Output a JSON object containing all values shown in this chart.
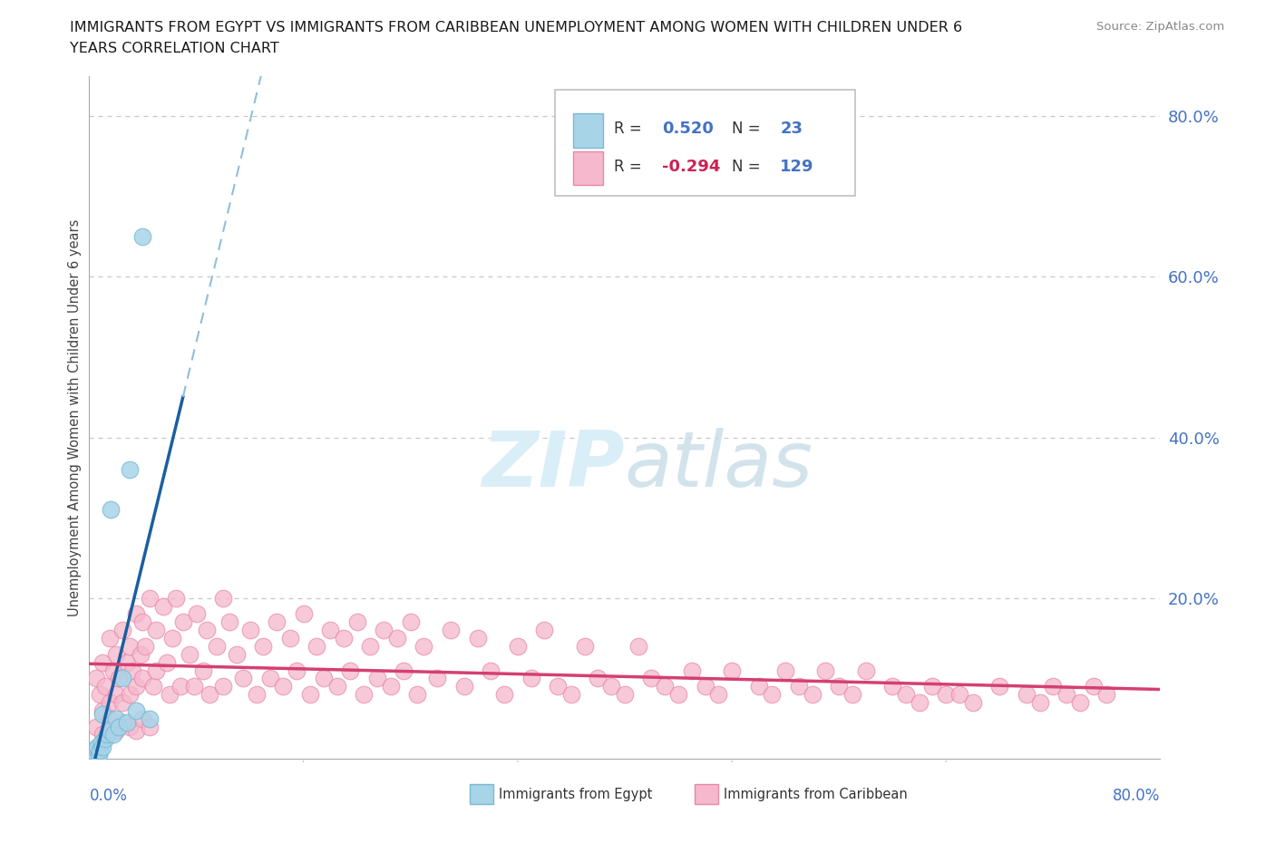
{
  "title_line1": "IMMIGRANTS FROM EGYPT VS IMMIGRANTS FROM CARIBBEAN UNEMPLOYMENT AMONG WOMEN WITH CHILDREN UNDER 6",
  "title_line2": "YEARS CORRELATION CHART",
  "source": "Source: ZipAtlas.com",
  "ylabel": "Unemployment Among Women with Children Under 6 years",
  "y_tick_values": [
    0.2,
    0.4,
    0.6,
    0.8
  ],
  "xmin": 0.0,
  "xmax": 0.8,
  "ymin": 0.0,
  "ymax": 0.85,
  "egypt_R": 0.52,
  "egypt_N": 23,
  "caribbean_R": -0.294,
  "caribbean_N": 129,
  "egypt_scatter_color": "#a8d4e8",
  "egypt_edge_color": "#7ab8d4",
  "caribbean_scatter_color": "#f5b8cc",
  "caribbean_edge_color": "#e888a8",
  "egypt_line_color": "#1a5fa0",
  "egypt_dash_color": "#90bedd",
  "caribbean_line_color": "#d44070",
  "watermark_color": "#daeef8",
  "grid_color": "#c8c8c8",
  "background_color": "#ffffff",
  "tick_color": "#4472c4",
  "label_color": "#444444",
  "egypt_x": [
    0.002,
    0.003,
    0.004,
    0.005,
    0.006,
    0.007,
    0.008,
    0.009,
    0.01,
    0.01,
    0.012,
    0.013,
    0.015,
    0.016,
    0.018,
    0.02,
    0.022,
    0.025,
    0.028,
    0.03,
    0.035,
    0.04,
    0.045
  ],
  "egypt_y": [
    0.01,
    0.005,
    0.008,
    0.012,
    0.015,
    0.005,
    0.01,
    0.02,
    0.015,
    0.055,
    0.025,
    0.03,
    0.035,
    0.31,
    0.03,
    0.05,
    0.04,
    0.1,
    0.045,
    0.36,
    0.06,
    0.65,
    0.05
  ],
  "caribbean_x": [
    0.005,
    0.008,
    0.01,
    0.01,
    0.012,
    0.015,
    0.015,
    0.018,
    0.02,
    0.02,
    0.022,
    0.025,
    0.025,
    0.028,
    0.03,
    0.03,
    0.032,
    0.035,
    0.035,
    0.038,
    0.04,
    0.04,
    0.042,
    0.045,
    0.048,
    0.05,
    0.05,
    0.055,
    0.058,
    0.06,
    0.062,
    0.065,
    0.068,
    0.07,
    0.075,
    0.078,
    0.08,
    0.085,
    0.088,
    0.09,
    0.095,
    0.1,
    0.1,
    0.105,
    0.11,
    0.115,
    0.12,
    0.125,
    0.13,
    0.135,
    0.14,
    0.145,
    0.15,
    0.155,
    0.16,
    0.165,
    0.17,
    0.175,
    0.18,
    0.185,
    0.19,
    0.195,
    0.2,
    0.205,
    0.21,
    0.215,
    0.22,
    0.225,
    0.23,
    0.235,
    0.24,
    0.245,
    0.25,
    0.26,
    0.27,
    0.28,
    0.29,
    0.3,
    0.31,
    0.32,
    0.33,
    0.34,
    0.35,
    0.36,
    0.37,
    0.38,
    0.39,
    0.4,
    0.41,
    0.42,
    0.43,
    0.44,
    0.45,
    0.46,
    0.47,
    0.48,
    0.5,
    0.51,
    0.52,
    0.53,
    0.54,
    0.55,
    0.56,
    0.57,
    0.58,
    0.6,
    0.61,
    0.62,
    0.63,
    0.64,
    0.65,
    0.66,
    0.68,
    0.7,
    0.71,
    0.72,
    0.73,
    0.74,
    0.75,
    0.76,
    0.005,
    0.01,
    0.015,
    0.02,
    0.025,
    0.03,
    0.035,
    0.04,
    0.045
  ],
  "caribbean_y": [
    0.1,
    0.08,
    0.12,
    0.06,
    0.09,
    0.15,
    0.07,
    0.11,
    0.13,
    0.08,
    0.1,
    0.16,
    0.07,
    0.12,
    0.14,
    0.08,
    0.11,
    0.18,
    0.09,
    0.13,
    0.17,
    0.1,
    0.14,
    0.2,
    0.09,
    0.16,
    0.11,
    0.19,
    0.12,
    0.08,
    0.15,
    0.2,
    0.09,
    0.17,
    0.13,
    0.09,
    0.18,
    0.11,
    0.16,
    0.08,
    0.14,
    0.2,
    0.09,
    0.17,
    0.13,
    0.1,
    0.16,
    0.08,
    0.14,
    0.1,
    0.17,
    0.09,
    0.15,
    0.11,
    0.18,
    0.08,
    0.14,
    0.1,
    0.16,
    0.09,
    0.15,
    0.11,
    0.17,
    0.08,
    0.14,
    0.1,
    0.16,
    0.09,
    0.15,
    0.11,
    0.17,
    0.08,
    0.14,
    0.1,
    0.16,
    0.09,
    0.15,
    0.11,
    0.08,
    0.14,
    0.1,
    0.16,
    0.09,
    0.08,
    0.14,
    0.1,
    0.09,
    0.08,
    0.14,
    0.1,
    0.09,
    0.08,
    0.11,
    0.09,
    0.08,
    0.11,
    0.09,
    0.08,
    0.11,
    0.09,
    0.08,
    0.11,
    0.09,
    0.08,
    0.11,
    0.09,
    0.08,
    0.07,
    0.09,
    0.08,
    0.08,
    0.07,
    0.09,
    0.08,
    0.07,
    0.09,
    0.08,
    0.07,
    0.09,
    0.08,
    0.04,
    0.03,
    0.05,
    0.035,
    0.045,
    0.04,
    0.035,
    0.05,
    0.04
  ]
}
